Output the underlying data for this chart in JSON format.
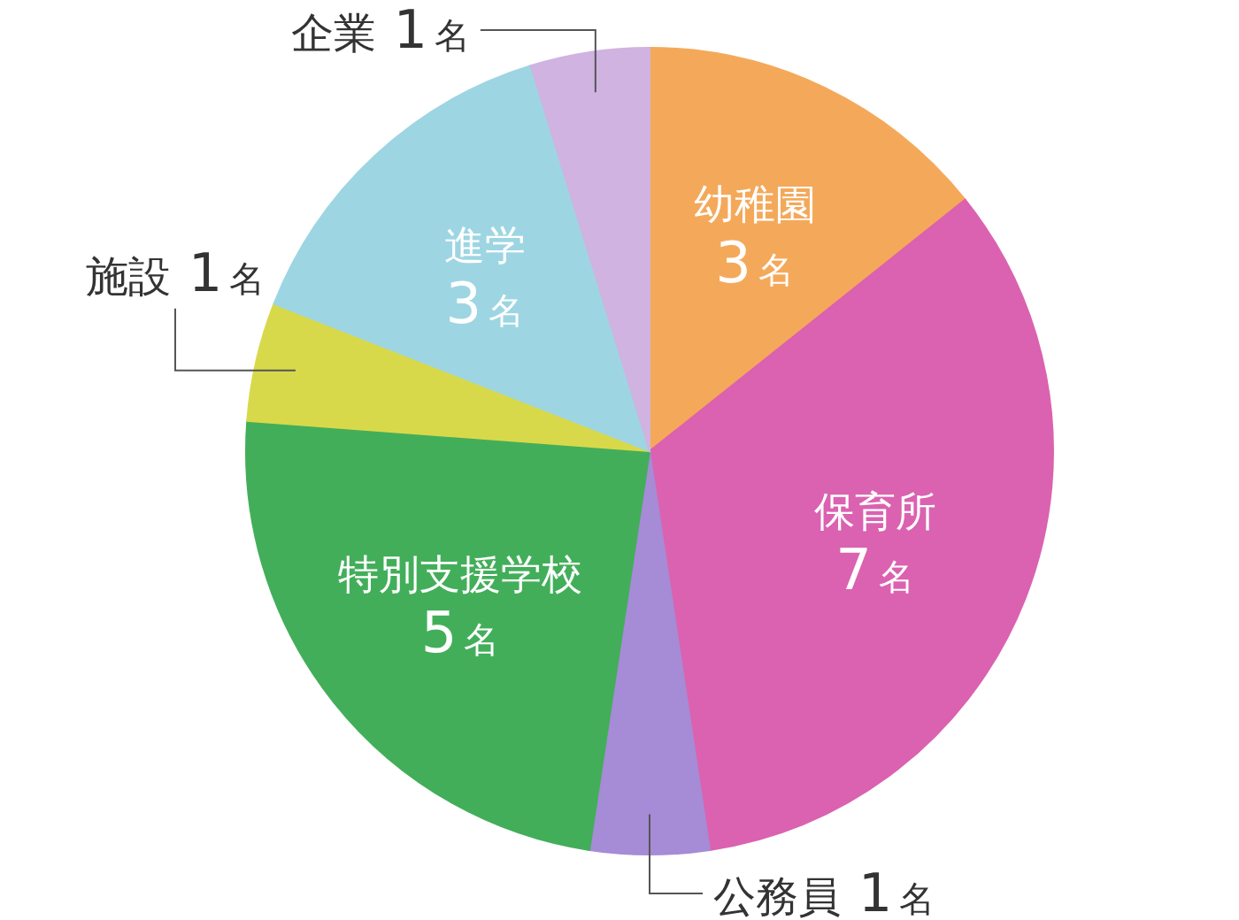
{
  "chart_data": {
    "type": "pie",
    "categories": [
      "幼稚園",
      "保育所",
      "公務員",
      "特別支援学校",
      "施設",
      "進学",
      "企業"
    ],
    "values": [
      3,
      7,
      1,
      5,
      1,
      3,
      1
    ],
    "value_labels": [
      "3名",
      "7名",
      "1名",
      "5名",
      "1名",
      "3名",
      "1名"
    ],
    "colors": [
      "#f4a95a",
      "#db62b0",
      "#a68bd6",
      "#43ae5a",
      "#d8d94a",
      "#9dd6e2",
      "#d0b3e0"
    ]
  }
}
